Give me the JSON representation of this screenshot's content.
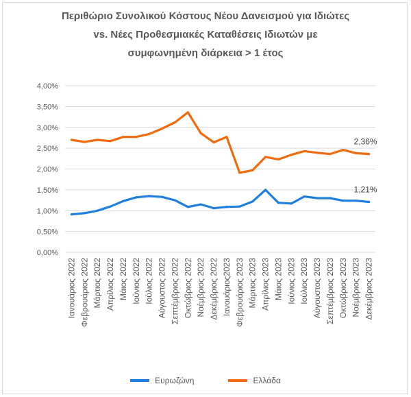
{
  "chart_data": {
    "type": "line",
    "title_lines": [
      "Περιθώριο Συνολικού Κόστους Νέου Δανεισμού για Ιδιώτες",
      "vs. Νέες Προθεσμιακές Καταθέσεις Ιδιωτών με",
      "συμφωνημένη διάρκεια > 1 έτος"
    ],
    "categories": [
      "Ιανουάριος 2022",
      "Φεβρουάριος 2022",
      "Μάρτιος 2022",
      "Απρίλιος 2022",
      "Μάιος 2022",
      "Ιούνιος 2022",
      "Ιούλιος 2022",
      "Αύγουστος 2022",
      "Σεπτέμβριος 2022",
      "Οκτώβριος 2022",
      "Νοέμβριος 2022",
      "Δεκέμβριος 2022",
      "Ιανουάριος2023",
      "Φεβρουάριος 2023",
      "Μάρτιος 2023",
      "Απρίλιος 2023",
      "Μάιος 2023",
      "Ιούνιος 2023",
      "Ιούλιος 2023",
      "Αύγουστος 2023",
      "Σεπτέμβριος 2023",
      "Οκτώβριος 2023",
      "Νοέμβριος 2023",
      "Δεκέμβριος 2023"
    ],
    "y_ticks": [
      "0,00%",
      "0,50%",
      "1,00%",
      "1,50%",
      "2,00%",
      "2,50%",
      "3,00%",
      "3,50%",
      "4,00%"
    ],
    "ylim": [
      0,
      4
    ],
    "grid": true,
    "legend_position": "bottom",
    "series": [
      {
        "name": "Ευρωζώνη",
        "color": "#1f7fe0",
        "values": [
          0.91,
          0.94,
          1.0,
          1.1,
          1.23,
          1.32,
          1.35,
          1.33,
          1.25,
          1.09,
          1.15,
          1.06,
          1.09,
          1.1,
          1.22,
          1.5,
          1.19,
          1.17,
          1.34,
          1.3,
          1.3,
          1.24,
          1.24,
          1.21
        ],
        "end_label": "1,21%"
      },
      {
        "name": "Ελλάδα",
        "color": "#f06a0e",
        "values": [
          2.7,
          2.65,
          2.7,
          2.67,
          2.77,
          2.77,
          2.84,
          2.97,
          3.12,
          3.36,
          2.86,
          2.64,
          2.77,
          1.91,
          1.97,
          2.29,
          2.23,
          2.34,
          2.43,
          2.39,
          2.36,
          2.46,
          2.38,
          2.36
        ],
        "end_label": "2,36%"
      }
    ]
  }
}
